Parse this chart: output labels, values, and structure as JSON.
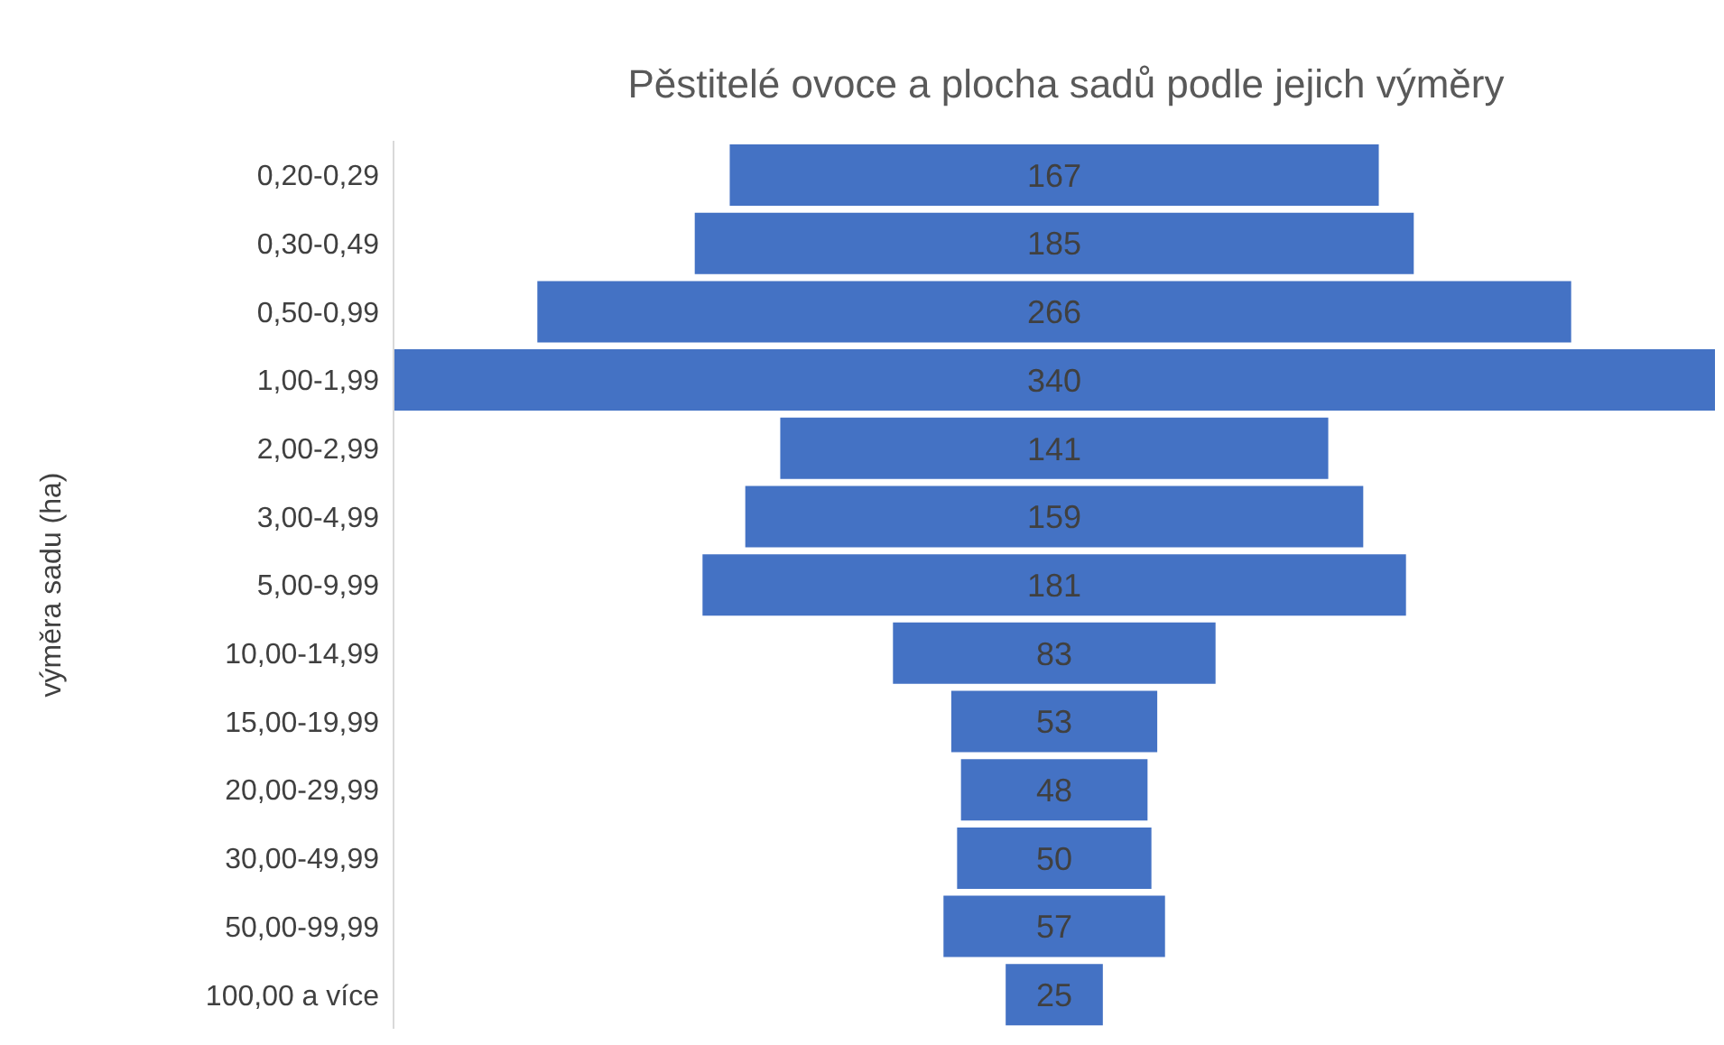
{
  "chart_data": {
    "type": "other",
    "title": "Pěstitelé ovoce a plocha sadů podle jejich výměry",
    "ylabel": "výměra sadu (ha)",
    "categories": [
      "0,20-0,29",
      "0,30-0,49",
      "0,50-0,99",
      "1,00-1,99",
      "2,00-2,99",
      "3,00-4,99",
      "5,00-9,99",
      "10,00-14,99",
      "15,00-19,99",
      "20,00-29,99",
      "30,00-49,99",
      "50,00-99,99",
      "100,00 a více"
    ],
    "values": [
      167,
      185,
      266,
      340,
      141,
      159,
      181,
      83,
      53,
      48,
      50,
      57,
      25
    ],
    "color": "#4472c4",
    "data_labels": true
  }
}
